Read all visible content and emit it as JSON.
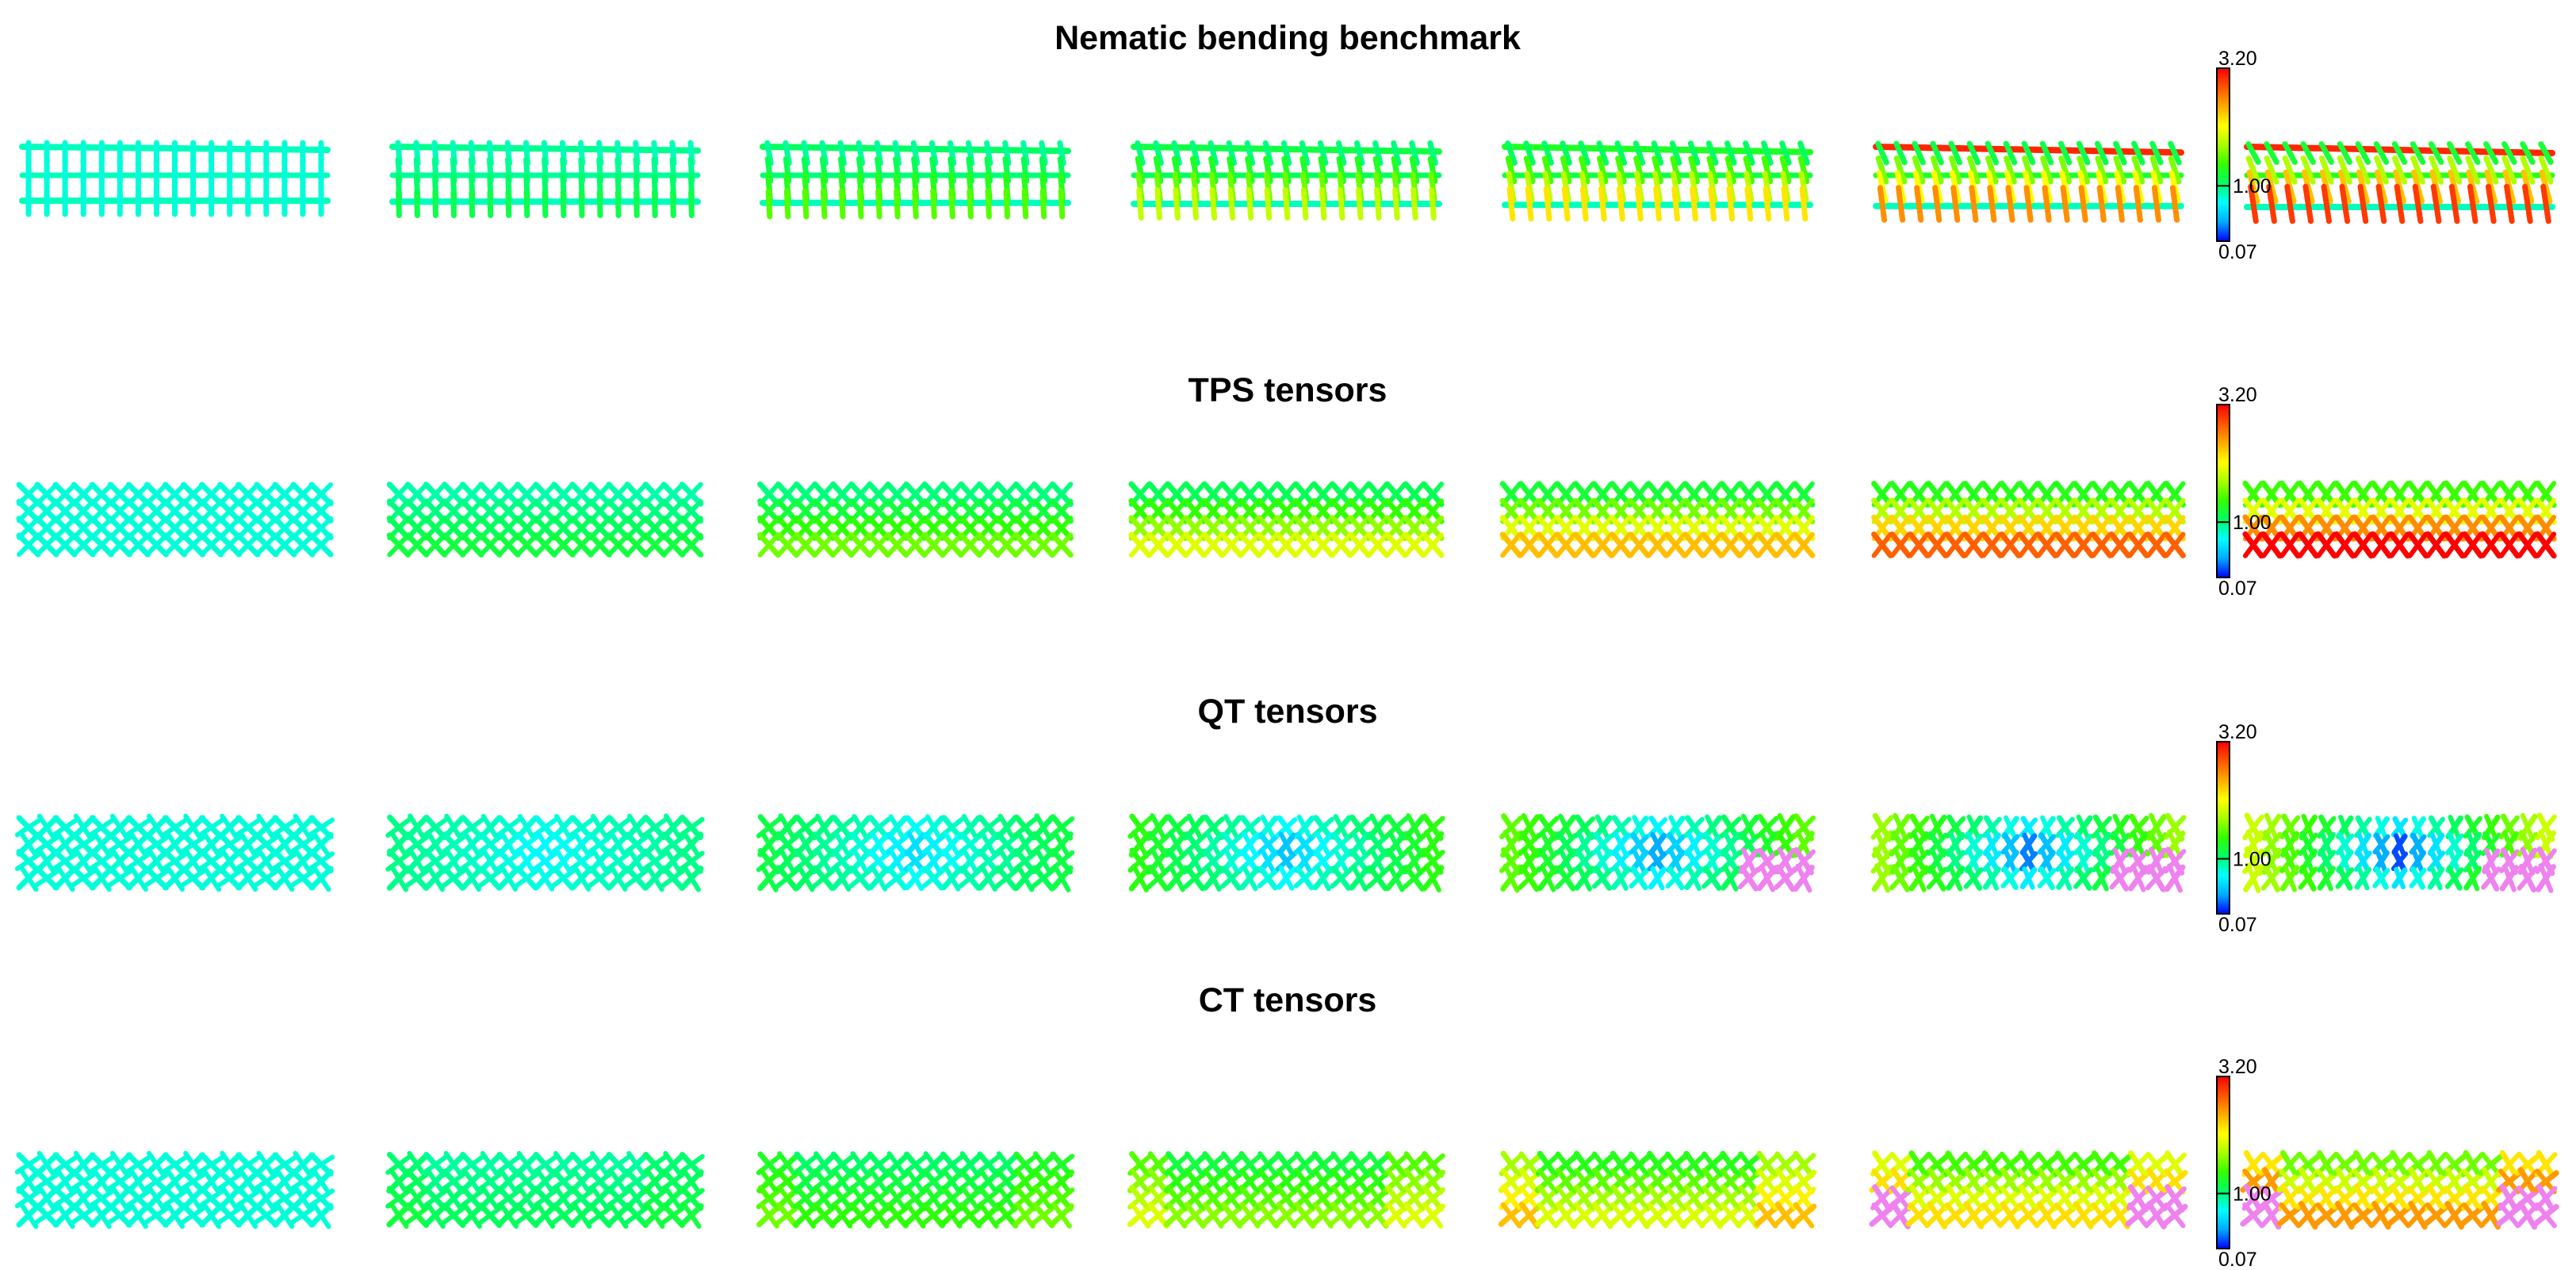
{
  "figure": {
    "rows": [
      {
        "title": "Nematic bending benchmark",
        "style": "nematic"
      },
      {
        "title": "TPS tensors",
        "style": "tps"
      },
      {
        "title": "QT tensors",
        "style": "qt"
      },
      {
        "title": "CT tensors",
        "style": "ct"
      }
    ],
    "panels_per_row": 7,
    "colorbar": {
      "max_label": "3.20",
      "mid_label": "1.00",
      "min_label": "0.07",
      "colors": [
        "#0000ff",
        "#00aaff",
        "#00ffff",
        "#00ff66",
        "#33ff00",
        "#aaff00",
        "#ffff00",
        "#ffaa00",
        "#ff5500",
        "#ff0000"
      ],
      "overflow_color": "#ee82ee"
    }
  }
}
